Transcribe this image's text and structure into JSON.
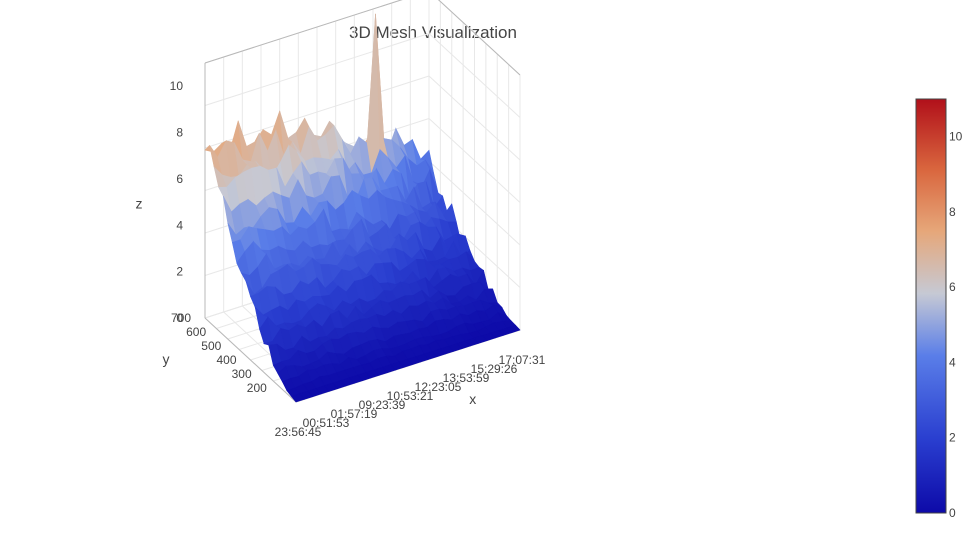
{
  "chart_data": {
    "type": "3d-mesh",
    "title": "3D Mesh Visualization",
    "axes": {
      "x": {
        "label": "x",
        "tick_labels": [
          "23:56:45",
          "00:51:53",
          "01:57:19",
          "09:23:39",
          "10:53:21",
          "12:23:05",
          "13:53:59",
          "15:29:26",
          "17:07:31"
        ]
      },
      "y": {
        "label": "y",
        "range": [
          100,
          700
        ],
        "tick_values": [
          200,
          300,
          400,
          500,
          600,
          700
        ]
      },
      "z": {
        "label": "z",
        "range": [
          0,
          11
        ],
        "tick_values": [
          0,
          2,
          4,
          6,
          8,
          10
        ]
      }
    },
    "surface": {
      "description_rows": "z values sampled over the x (time) by y grid; low near x start, rising to ~8 at high y, peak ~11",
      "x_count": 28,
      "y_values": [
        100,
        130,
        160,
        190,
        220,
        250,
        280,
        310,
        340,
        370,
        400,
        430,
        460,
        490,
        520,
        550,
        580,
        610,
        640,
        670,
        700
      ],
      "peak_z": 11,
      "plateau_z": 7.5
    },
    "colorbar": {
      "range": [
        0,
        11
      ],
      "tick_values": [
        0,
        2,
        4,
        6,
        8,
        10
      ],
      "colorscale": [
        "#0d0aa8",
        "#2a3fd0",
        "#5a7ee8",
        "#c6c9d4",
        "#e6a77a",
        "#d9663e",
        "#b1101a"
      ]
    }
  }
}
